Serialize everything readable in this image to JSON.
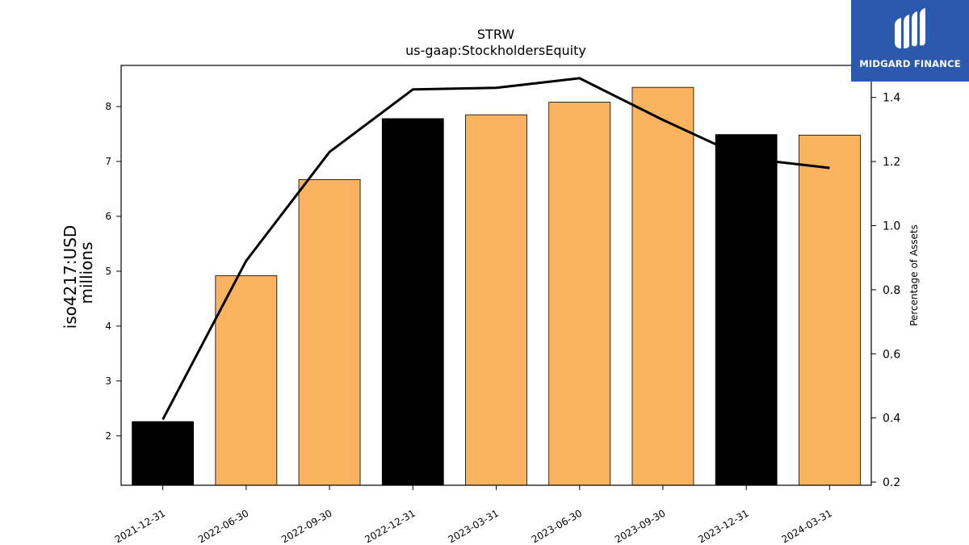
{
  "chart_data": {
    "type": "bar",
    "title": "STRW",
    "subtitle": "us-gaap:StockholdersEquity",
    "ylabel": "iso4217:USD",
    "ylabel_unit": "millions",
    "y2label": "Percentage of Assets",
    "categories": [
      "2021-12-31",
      "2022-06-30",
      "2022-09-30",
      "2022-12-31",
      "2023-03-31",
      "2023-06-30",
      "2023-09-30",
      "2023-12-31",
      "2024-03-31"
    ],
    "series": [
      {
        "type": "bar",
        "axis": "left",
        "values": [
          2.26,
          4.92,
          6.67,
          7.78,
          7.85,
          8.08,
          8.35,
          7.49,
          7.48
        ],
        "colors": [
          "#000000",
          "#fbb360",
          "#fbb360",
          "#000000",
          "#fbb360",
          "#fbb360",
          "#fbb360",
          "#000000",
          "#fbb360"
        ]
      },
      {
        "type": "line",
        "axis": "right",
        "color": "#000000",
        "values": [
          0.395,
          0.89,
          1.23,
          1.425,
          1.43,
          1.46,
          1.33,
          1.21,
          1.18
        ]
      }
    ],
    "ylim": [
      1.1,
      8.75
    ],
    "y2lim": [
      0.19,
      1.5
    ],
    "yticks": [
      2,
      3,
      4,
      5,
      6,
      7,
      8
    ],
    "y2ticks": [
      0.2,
      0.4,
      0.6,
      0.8,
      1.0,
      1.2,
      1.4
    ],
    "y2tick_labels": [
      "0.2",
      "0.4",
      "0.6",
      "0.8",
      "1.0",
      "1.2",
      "1.4"
    ],
    "grid": false,
    "legend": "none"
  },
  "logo": {
    "text": "MIDGARD FINANCE"
  }
}
